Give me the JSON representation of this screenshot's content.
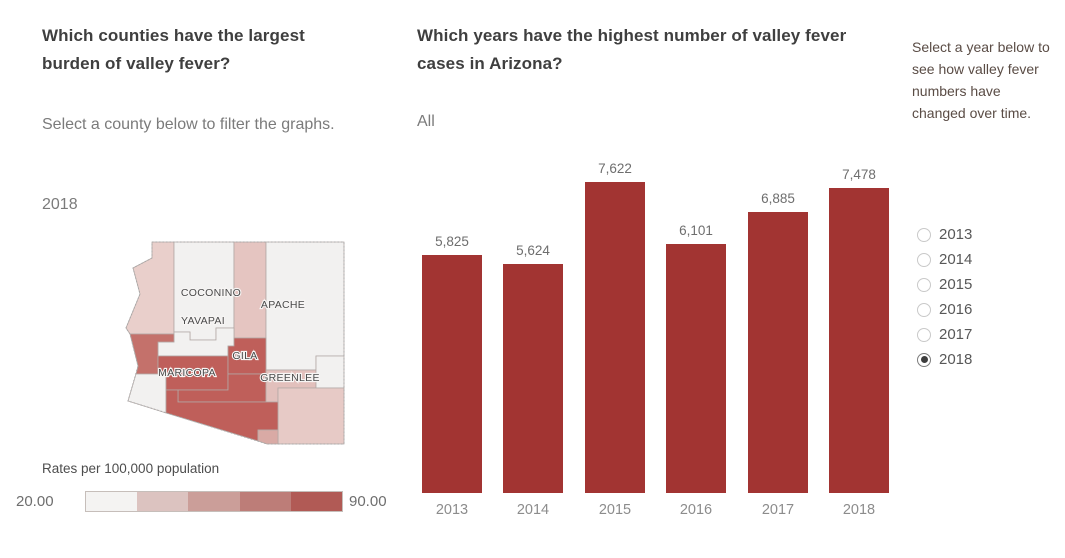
{
  "left_panel": {
    "title": "Which counties have the largest burden of valley fever?",
    "subtitle": "Select a county below to filter the graphs.",
    "year_label": "2018",
    "map": {
      "counties": [
        {
          "name": "mohave",
          "fill": "#e9cfcb"
        },
        {
          "name": "coconino",
          "fill": "#f2f1f0"
        },
        {
          "name": "navajo",
          "fill": "#e5c5c1"
        },
        {
          "name": "apache",
          "fill": "#f2f1f0"
        },
        {
          "name": "yavapai",
          "fill": "#f2f1f0"
        },
        {
          "name": "la-paz",
          "fill": "#c4716b"
        },
        {
          "name": "yuma",
          "fill": "#f2f1f0"
        },
        {
          "name": "maricopa",
          "fill": "#bf5f5a"
        },
        {
          "name": "gila",
          "fill": "#bf5f5a"
        },
        {
          "name": "pinal",
          "fill": "#bf5f5a"
        },
        {
          "name": "graham",
          "fill": "#e2c0bc"
        },
        {
          "name": "greenlee",
          "fill": "#f2f1f0"
        },
        {
          "name": "cochise",
          "fill": "#e7cac6"
        },
        {
          "name": "pima",
          "fill": "#bf5f5a"
        },
        {
          "name": "santa-cruz",
          "fill": "#d9aaa5"
        }
      ],
      "county_labels": [
        "COCONINO",
        "APACHE",
        "YAVAPAI",
        "GILA",
        "MARICOPA",
        "GREENLEE"
      ]
    },
    "legend": {
      "title": "Rates per 100,000 population",
      "min_label": "20.00",
      "max_label": "90.00",
      "colors": [
        "#f4f3f2",
        "#dcc3c0",
        "#cb9e99",
        "#bd7d78",
        "#b15a55"
      ]
    }
  },
  "center_panel": {
    "title": "Which years have the highest number of valley fever cases in Arizona?",
    "filter_label": "All"
  },
  "chart_data": {
    "type": "bar",
    "title": "Which years have the highest number of valley fever cases in Arizona?",
    "categories": [
      "2013",
      "2014",
      "2015",
      "2016",
      "2017",
      "2018"
    ],
    "values": [
      5825,
      5624,
      7622,
      6101,
      6885,
      7478
    ],
    "value_labels": [
      "5,825",
      "5,624",
      "7,622",
      "6,101",
      "6,885",
      "7,478"
    ],
    "bar_color": "#a23432",
    "xlabel": "",
    "ylabel": "",
    "ylim": [
      0,
      8400
    ],
    "grid": false,
    "legend_position": "none"
  },
  "right_panel": {
    "instruction": "Select a year below to see how valley fever numbers have changed over time.",
    "year_options": [
      "2013",
      "2014",
      "2015",
      "2016",
      "2017",
      "2018"
    ],
    "selected_year": "2018"
  }
}
